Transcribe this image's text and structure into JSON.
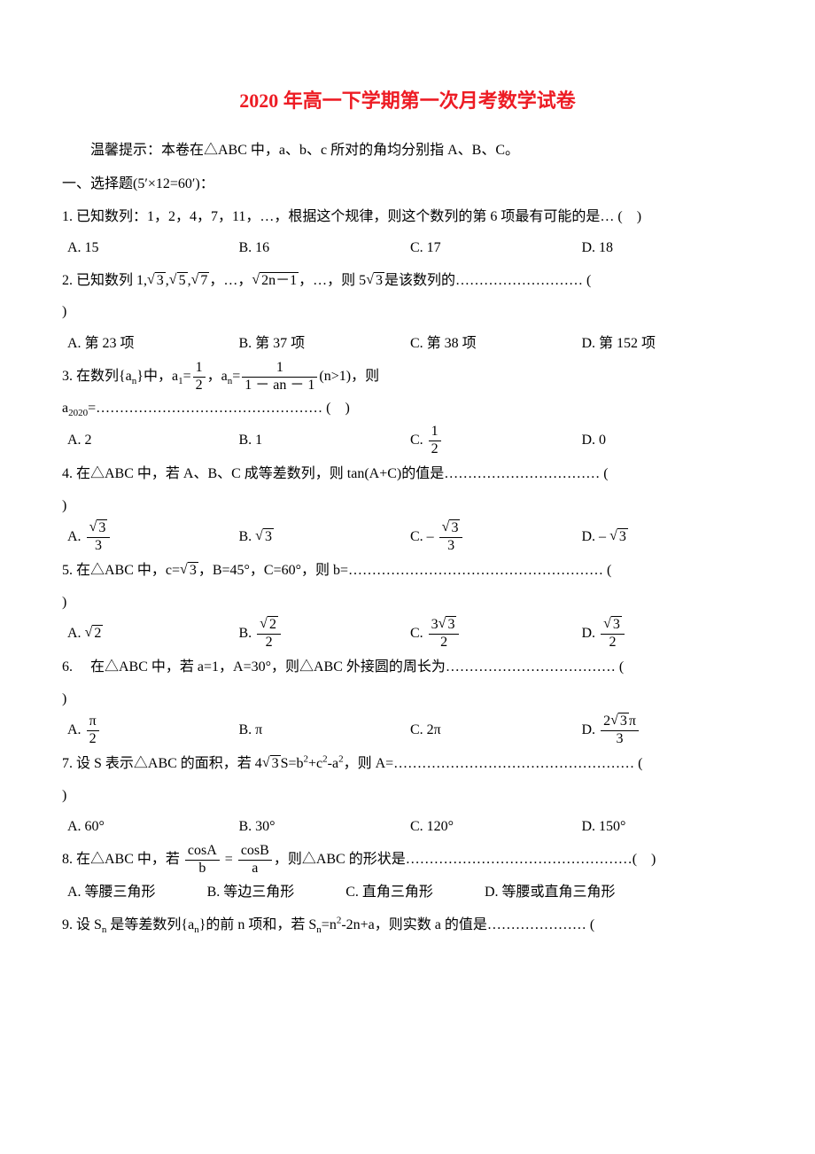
{
  "title": "2020 年高一下学期第一次月考数学试卷",
  "hint": "温馨提示：本卷在△ABC 中，a、b、c 所对的角均分别指 A、B、C。",
  "sectionHeader": "一、选择题(5′×12=60′)：",
  "q1": {
    "text": "1. 已知数列：1，2，4，7，11，…，根据这个规律，则这个数列的第 6 项最有可能的是… (　)",
    "A": "A. 15",
    "B": "B. 16",
    "C": "C. 17",
    "D": "D. 18"
  },
  "q2": {
    "pre": "2. 已知数列 1,",
    "mid1": "，…，",
    "post": "，…，则 5",
    "tail": "是该数列的……………………… (",
    "close": ")",
    "A": "A. 第 23 项",
    "B": "B. 第 37 项",
    "C": "C. 第 38 项",
    "D": "D. 第 152 项"
  },
  "q3": {
    "pre": "3. 在数列{a",
    "postPre": "}中，a",
    "eq1": "=",
    "mid": "，a",
    "eq2": "=",
    "cond": "(n>1)，则",
    "line2a": "a",
    "line2b": "=………………………………………… (　)",
    "A": "A. 2",
    "B": "B. 1",
    "Cpre": "C. ",
    "D": "D. 0"
  },
  "q4": {
    "text": "4. 在△ABC 中，若 A、B、C 成等差数列，则 tan(A+C)的值是…………………………… (",
    "close": ")",
    "Apre": "A. ",
    "Bpre": "B. ",
    "Cpre": "C. – ",
    "Dpre": "D. – "
  },
  "q5": {
    "pre": "5. 在△ABC 中，c=",
    "post": "，B=45°，C=60°，则 b=……………………………………………… (",
    "close": ")",
    "Apre": "A. ",
    "Bpre": "B. ",
    "Cpre": "C. ",
    "Dpre": "D. "
  },
  "q6": {
    "text": "6. 　在△ABC 中，若 a=1，A=30°，则△ABC 外接圆的周长为……………………………… (",
    "close": ")",
    "Apre": "A. ",
    "B": "B. π",
    "C": "C. 2π",
    "Dpre": "D. "
  },
  "q7": {
    "pre": "7. 设 S 表示△ABC 的面积，若 4",
    "post": "S=b",
    "mid2": "+c",
    "mid3": "-a",
    "tail": "，则 A=…………………………………………… (",
    "close": ")",
    "A": "A.  60°",
    "B": "B.  30°",
    "C": "C. 120°",
    "D": "D. 150°"
  },
  "q8": {
    "pre": "8. 在△ABC 中，若 ",
    "post": "，则△ABC 的形状是…………………………………………(　)",
    "A": "A. 等腰三角形",
    "B": "B. 等边三角形",
    "C": "C. 直角三角形",
    "D": "D. 等腰或直角三角形"
  },
  "q9": {
    "pre": "9. 设 S",
    "mid": " 是等差数列{a",
    "mid2": "}的前 n 项和，若 S",
    "mid3": "=n",
    "mid4": "-2n+a，则实数 a 的值是………………… ("
  },
  "numbers": {
    "one": "1",
    "two": "2",
    "2020": "2020",
    "anm1": "an － 1",
    "n_sub": "n",
    "n1": "1"
  },
  "rad": {
    "r3": "3",
    "r5": "5",
    "r7": "7",
    "r2n1": "2n－1",
    "r2": "2",
    "threeR2": "3",
    "twoR3pi": "2",
    "r3pi": "3"
  },
  "frac": {
    "half_num": "1",
    "half_den": "2",
    "r3_3_num": "3",
    "r3_3_den": "3",
    "r2_2_num": "2",
    "r2_2_den": "2",
    "threeR2_2_num": "2",
    "threeR2_2_num_pref": "3",
    "r3_2_den": "2",
    "pi_2_num": "π",
    "pi_2_den": "2",
    "twoR3pi_3_den": "3",
    "cosA": "cosA",
    "cosB": "cosB",
    "b": "b",
    "a": "a"
  }
}
